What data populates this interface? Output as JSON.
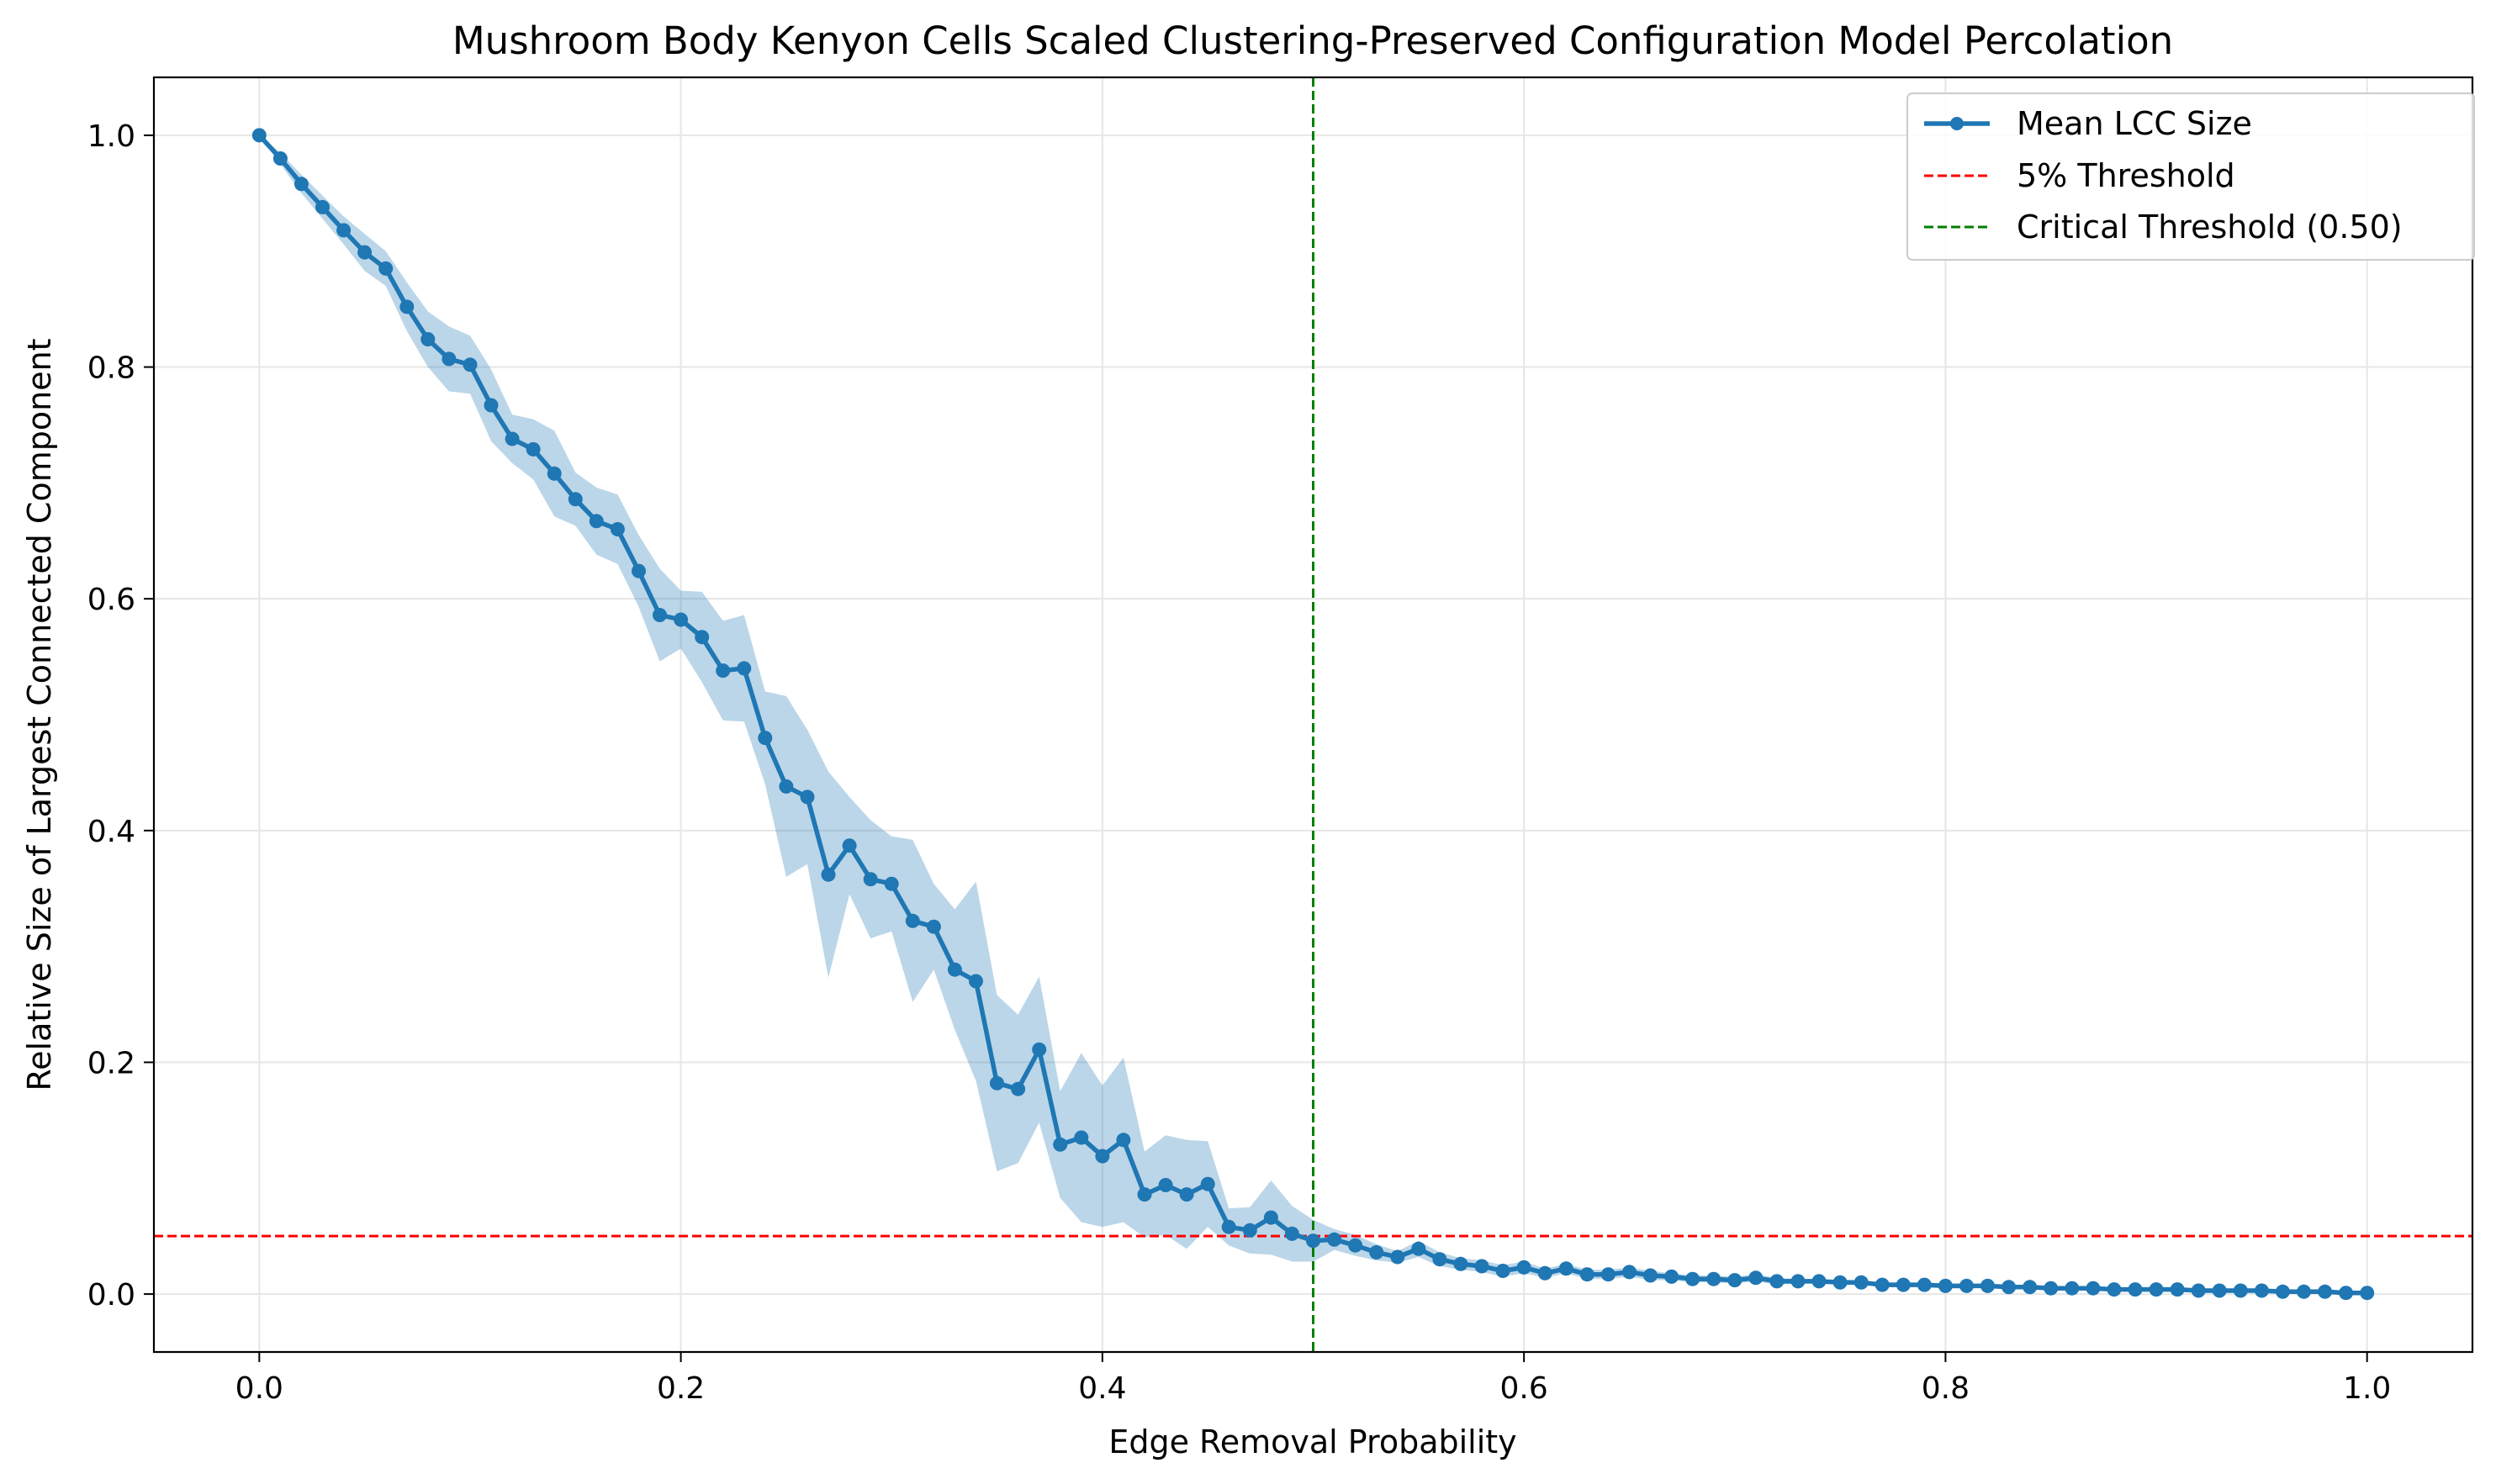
{
  "chart_data": {
    "type": "line",
    "title": "Mushroom Body Kenyon Cells Scaled Clustering-Preserved Configuration Model Percolation",
    "xlabel": "Edge Removal Probability",
    "ylabel": "Relative Size of Largest Connected Component",
    "xlim": [
      -0.05,
      1.05
    ],
    "ylim": [
      -0.05,
      1.05
    ],
    "xticks": [
      0.0,
      0.2,
      0.4,
      0.6,
      0.8,
      1.0
    ],
    "xtick_labels": [
      "0.0",
      "0.2",
      "0.4",
      "0.6",
      "0.8",
      "1.0"
    ],
    "yticks": [
      0.0,
      0.2,
      0.4,
      0.6,
      0.8,
      1.0
    ],
    "ytick_labels": [
      "0.0",
      "0.2",
      "0.4",
      "0.6",
      "0.8",
      "1.0"
    ],
    "grid": true,
    "legend_position": "top-right",
    "colors": {
      "line": "#1f77b4",
      "band": "#1f77b4",
      "threshold": "#ff0000",
      "critical": "#007f00",
      "grid": "#e6e6e6"
    },
    "series": [
      {
        "name": "Mean LCC Size",
        "x": [
          0.0,
          0.01,
          0.02,
          0.03,
          0.04,
          0.05,
          0.06,
          0.07,
          0.08,
          0.09,
          0.1,
          0.11,
          0.12,
          0.13,
          0.14,
          0.15,
          0.16,
          0.17,
          0.18,
          0.19,
          0.2,
          0.21,
          0.22,
          0.23,
          0.24,
          0.25,
          0.26,
          0.27,
          0.28,
          0.29,
          0.3,
          0.31,
          0.32,
          0.33,
          0.34,
          0.35,
          0.36,
          0.37,
          0.38,
          0.39,
          0.4,
          0.41,
          0.42,
          0.43,
          0.44,
          0.45,
          0.46,
          0.47,
          0.48,
          0.49,
          0.5,
          0.51,
          0.52,
          0.53,
          0.54,
          0.55,
          0.56,
          0.57,
          0.58,
          0.59,
          0.6,
          0.61,
          0.62,
          0.63,
          0.64,
          0.65,
          0.66,
          0.67,
          0.68,
          0.69,
          0.7,
          0.71,
          0.72,
          0.73,
          0.74,
          0.75,
          0.76,
          0.77,
          0.78,
          0.79,
          0.8,
          0.81,
          0.82,
          0.83,
          0.84,
          0.85,
          0.86,
          0.87,
          0.88,
          0.89,
          0.9,
          0.91,
          0.92,
          0.93,
          0.94,
          0.95,
          0.96,
          0.97,
          0.98,
          0.99,
          1.0
        ],
        "y": [
          1.0,
          0.98,
          0.958,
          0.938,
          0.918,
          0.899,
          0.885,
          0.852,
          0.824,
          0.807,
          0.802,
          0.767,
          0.738,
          0.729,
          0.708,
          0.686,
          0.667,
          0.66,
          0.624,
          0.586,
          0.582,
          0.567,
          0.538,
          0.54,
          0.48,
          0.438,
          0.429,
          0.362,
          0.387,
          0.358,
          0.354,
          0.322,
          0.317,
          0.28,
          0.27,
          0.182,
          0.177,
          0.211,
          0.129,
          0.135,
          0.119,
          0.133,
          0.086,
          0.094,
          0.086,
          0.095,
          0.058,
          0.055,
          0.066,
          0.052,
          0.046,
          0.047,
          0.042,
          0.036,
          0.032,
          0.039,
          0.03,
          0.026,
          0.024,
          0.02,
          0.023,
          0.018,
          0.022,
          0.017,
          0.017,
          0.019,
          0.016,
          0.015,
          0.013,
          0.013,
          0.012,
          0.014,
          0.011,
          0.011,
          0.011,
          0.01,
          0.01,
          0.008,
          0.008,
          0.008,
          0.007,
          0.007,
          0.007,
          0.006,
          0.006,
          0.005,
          0.005,
          0.005,
          0.004,
          0.004,
          0.004,
          0.004,
          0.003,
          0.003,
          0.003,
          0.003,
          0.002,
          0.002,
          0.002,
          0.001,
          0.001
        ],
        "y_upper": [
          1.0,
          0.985,
          0.966,
          0.948,
          0.93,
          0.915,
          0.9,
          0.873,
          0.848,
          0.835,
          0.827,
          0.798,
          0.759,
          0.755,
          0.745,
          0.709,
          0.696,
          0.69,
          0.655,
          0.626,
          0.607,
          0.606,
          0.581,
          0.586,
          0.52,
          0.516,
          0.487,
          0.451,
          0.429,
          0.409,
          0.395,
          0.392,
          0.354,
          0.332,
          0.356,
          0.258,
          0.241,
          0.274,
          0.175,
          0.208,
          0.18,
          0.204,
          0.123,
          0.137,
          0.133,
          0.132,
          0.074,
          0.075,
          0.098,
          0.076,
          0.064,
          0.056,
          0.051,
          0.043,
          0.037,
          0.046,
          0.036,
          0.031,
          0.029,
          0.025,
          0.028,
          0.022,
          0.026,
          0.021,
          0.021,
          0.023,
          0.02,
          0.018,
          0.016,
          0.016,
          0.015,
          0.017,
          0.014,
          0.013,
          0.013,
          0.012,
          0.012,
          0.01,
          0.01,
          0.01,
          0.009,
          0.009,
          0.008,
          0.008,
          0.007,
          0.007,
          0.006,
          0.006,
          0.005,
          0.005,
          0.005,
          0.005,
          0.004,
          0.004,
          0.004,
          0.004,
          0.003,
          0.003,
          0.003,
          0.002,
          0.002
        ],
        "y_lower": [
          1.0,
          0.975,
          0.95,
          0.928,
          0.906,
          0.883,
          0.87,
          0.831,
          0.8,
          0.779,
          0.777,
          0.736,
          0.717,
          0.703,
          0.671,
          0.663,
          0.638,
          0.63,
          0.593,
          0.546,
          0.557,
          0.528,
          0.495,
          0.494,
          0.44,
          0.36,
          0.371,
          0.273,
          0.345,
          0.307,
          0.313,
          0.252,
          0.28,
          0.228,
          0.184,
          0.106,
          0.113,
          0.148,
          0.083,
          0.062,
          0.058,
          0.062,
          0.049,
          0.051,
          0.039,
          0.058,
          0.042,
          0.035,
          0.034,
          0.028,
          0.028,
          0.038,
          0.033,
          0.029,
          0.027,
          0.032,
          0.024,
          0.021,
          0.019,
          0.015,
          0.018,
          0.014,
          0.018,
          0.013,
          0.013,
          0.015,
          0.012,
          0.012,
          0.01,
          0.01,
          0.009,
          0.011,
          0.008,
          0.009,
          0.009,
          0.008,
          0.008,
          0.006,
          0.006,
          0.006,
          0.005,
          0.005,
          0.006,
          0.004,
          0.005,
          0.003,
          0.004,
          0.004,
          0.003,
          0.003,
          0.003,
          0.003,
          0.002,
          0.002,
          0.002,
          0.002,
          0.001,
          0.001,
          0.001,
          0.0,
          0.0
        ]
      }
    ],
    "reference_lines": [
      {
        "name": "5% Threshold",
        "orientation": "horizontal",
        "value": 0.05,
        "style": "dashed"
      },
      {
        "name": "Critical Threshold (0.50)",
        "orientation": "vertical",
        "value": 0.5,
        "style": "dashed"
      }
    ],
    "legend": [
      "Mean LCC Size",
      "5% Threshold",
      "Critical Threshold (0.50)"
    ]
  }
}
